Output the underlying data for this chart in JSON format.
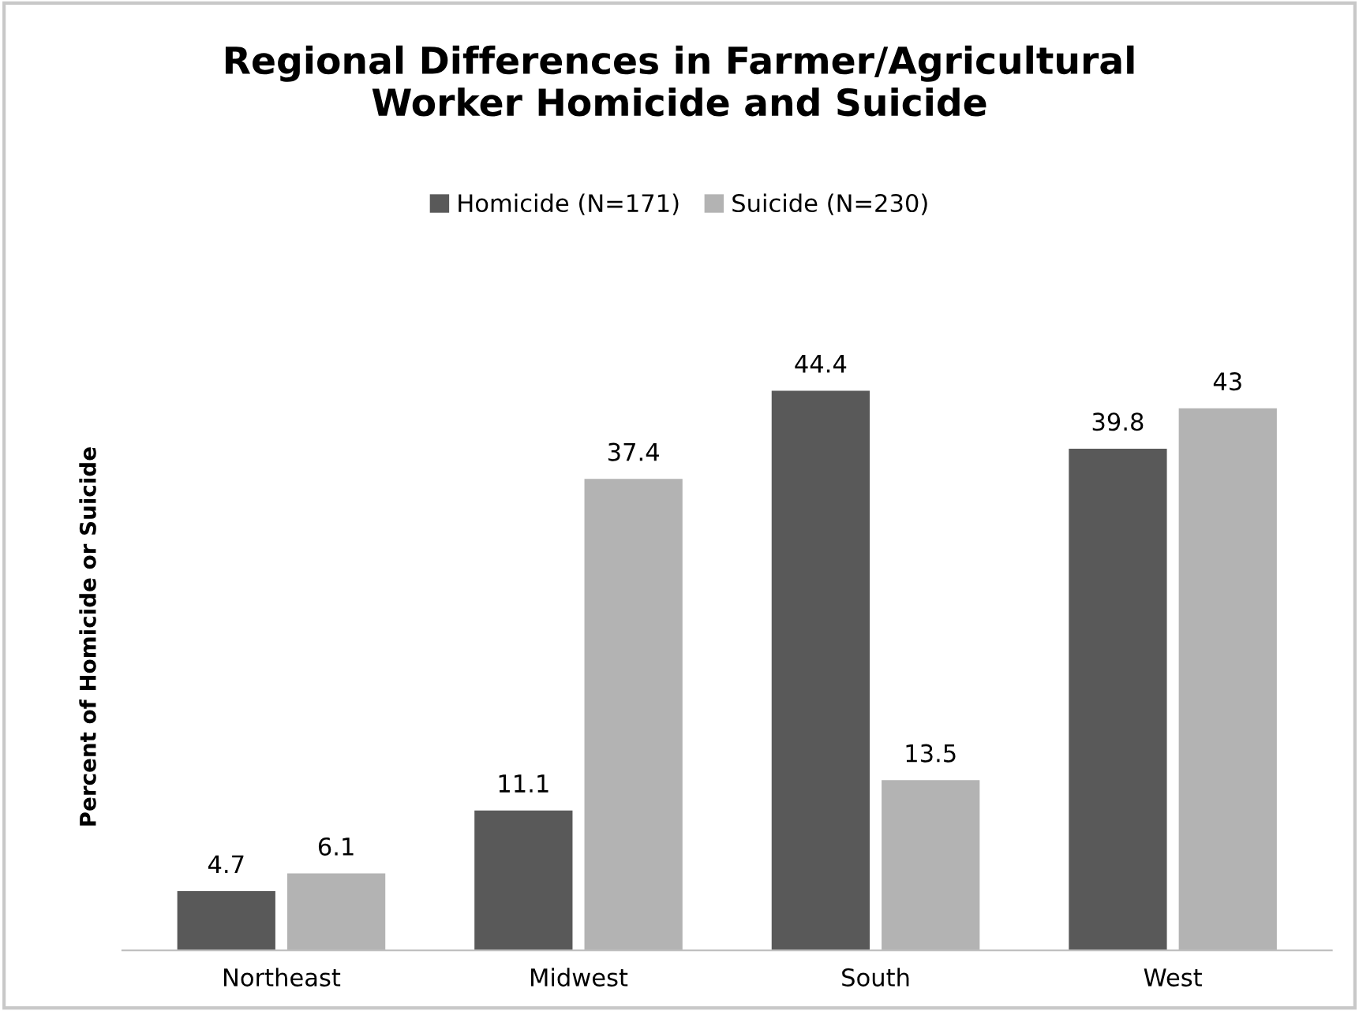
{
  "chart_data": {
    "type": "bar",
    "title": "Regional Differences in Farmer/Agricultural\nWorker Homicide and Suicide",
    "ylabel": "Percent of Homicide or Suicide",
    "categories": [
      "Northeast",
      "Midwest",
      "South",
      "West"
    ],
    "series": [
      {
        "name": "Homicide (N=171)",
        "color": "#595959",
        "values": [
          4.7,
          11.1,
          44.4,
          39.8
        ]
      },
      {
        "name": "Suicide (N=230)",
        "color": "#b3b3b3",
        "values": [
          6.1,
          37.4,
          13.5,
          43
        ]
      }
    ],
    "data_labels": true,
    "legend": "top",
    "grid": false,
    "tick_labels": "x"
  }
}
